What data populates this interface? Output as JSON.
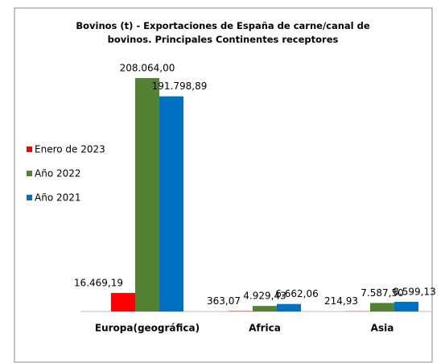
{
  "chart_data": {
    "type": "bar",
    "title": "Bovinos (t) - Exportaciones de España de carne/canal de bovinos. Principales Continentes receptores",
    "categories": [
      "Europa(geográfica)",
      "Africa",
      "Asia"
    ],
    "series": [
      {
        "name": "Enero de 2023",
        "color": "#ff0000",
        "values": [
          16469.19,
          363.07,
          214.93
        ],
        "value_labels": [
          "16.469,19",
          "363,07",
          "214,93"
        ]
      },
      {
        "name": "Año 2022",
        "color": "#548235",
        "values": [
          208064.0,
          4929.43,
          7587.5
        ],
        "value_labels": [
          "208.064,00",
          "4.929,43",
          "7.587,50"
        ]
      },
      {
        "name": "Año 2021",
        "color": "#0070c0",
        "values": [
          191798.89,
          6662.06,
          8599.13
        ],
        "value_labels": [
          "191.798,89",
          "6.662,06",
          "8.599,13"
        ]
      }
    ],
    "legend": "left"
  }
}
